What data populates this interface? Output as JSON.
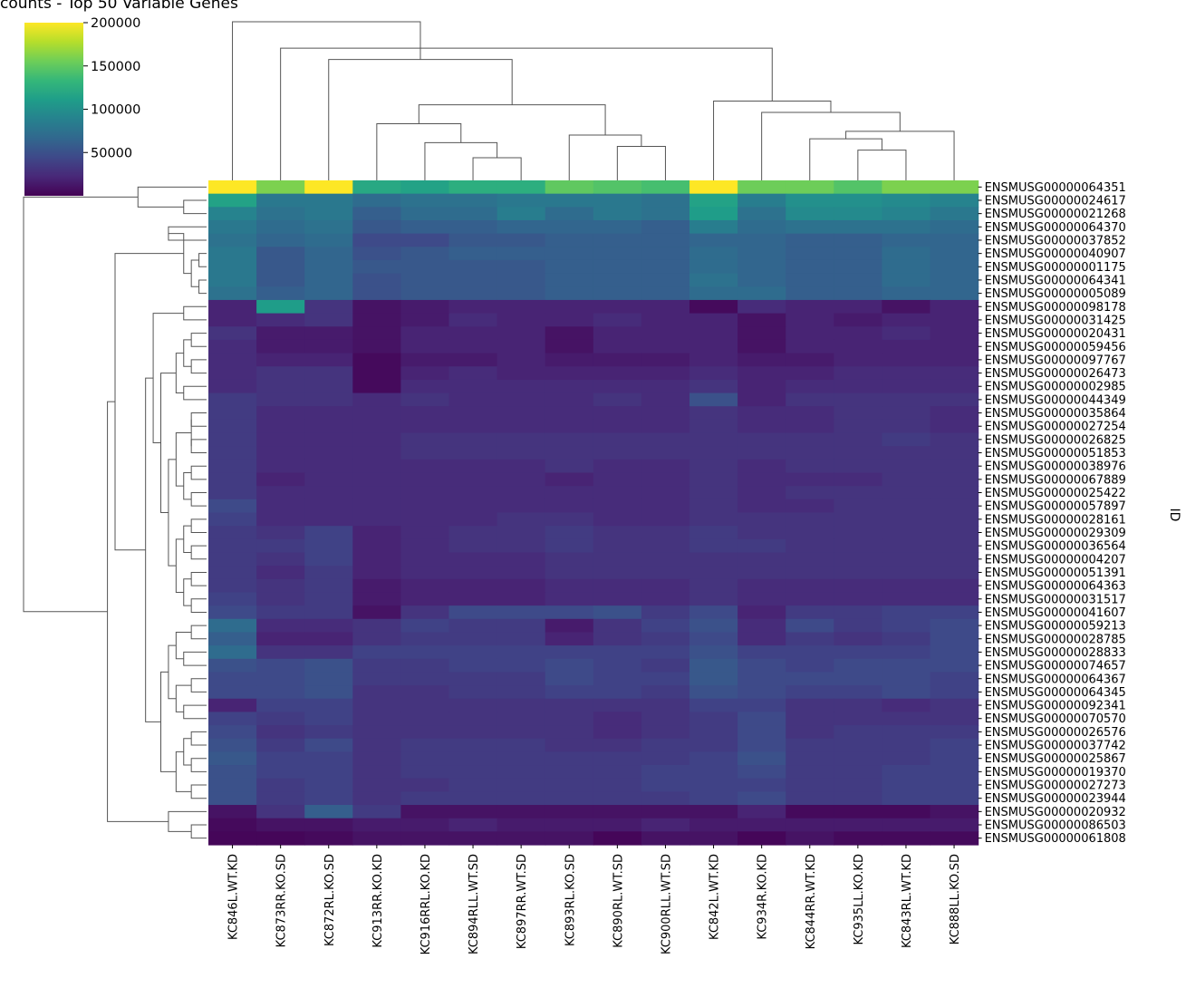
{
  "chart_data": {
    "type": "heatmap",
    "title": "counts - Top 50 Variable Genes",
    "xlabel": "",
    "ylabel": "ID",
    "colormap": "viridis",
    "colorbar": {
      "min": 0,
      "max": 200000,
      "ticks": [
        50000,
        100000,
        150000,
        200000
      ],
      "tick_labels": [
        "50000",
        "100000",
        "150000",
        "200000"
      ]
    },
    "columns": [
      "KC846L.WT.KD",
      "KC873RR.KO.SD",
      "KC872RL.KO.SD",
      "KC913RR.KO.KD",
      "KC916RRL.KO.KD",
      "KC894RLL.WT.SD",
      "KC897RR.WT.SD",
      "KC893RL.KO.SD",
      "KC890RL.WT.SD",
      "KC900RLL.WT.SD",
      "KC842L.WT.KD",
      "KC934R.KO.KD",
      "KC844RR.WT.KD",
      "KC935LL.KO.KD",
      "KC843RL.WT.KD",
      "KC888LL.KO.SD"
    ],
    "rows": [
      "ENSMUSG00000064351",
      "ENSMUSG00000024617",
      "ENSMUSG00000021268",
      "ENSMUSG00000064370",
      "ENSMUSG00000037852",
      "ENSMUSG00000040907",
      "ENSMUSG00000001175",
      "ENSMUSG00000064341",
      "ENSMUSG00000005089",
      "ENSMUSG00000098178",
      "ENSMUSG00000031425",
      "ENSMUSG00000020431",
      "ENSMUSG00000059456",
      "ENSMUSG00000097767",
      "ENSMUSG00000026473",
      "ENSMUSG00000002985",
      "ENSMUSG00000044349",
      "ENSMUSG00000035864",
      "ENSMUSG00000027254",
      "ENSMUSG00000026825",
      "ENSMUSG00000051853",
      "ENSMUSG00000038976",
      "ENSMUSG00000067889",
      "ENSMUSG00000025422",
      "ENSMUSG00000057897",
      "ENSMUSG00000028161",
      "ENSMUSG00000029309",
      "ENSMUSG00000036564",
      "ENSMUSG00000004207",
      "ENSMUSG00000051391",
      "ENSMUSG00000064363",
      "ENSMUSG00000031517",
      "ENSMUSG00000041607",
      "ENSMUSG00000059213",
      "ENSMUSG00000028785",
      "ENSMUSG00000028833",
      "ENSMUSG00000074657",
      "ENSMUSG00000064367",
      "ENSMUSG00000064345",
      "ENSMUSG00000092341",
      "ENSMUSG00000070570",
      "ENSMUSG00000026576",
      "ENSMUSG00000037742",
      "ENSMUSG00000025867",
      "ENSMUSG00000019370",
      "ENSMUSG00000027273",
      "ENSMUSG00000023944",
      "ENSMUSG00000020932",
      "ENSMUSG00000086503",
      "ENSMUSG00000061808"
    ],
    "values": [
      [
        200000,
        160000,
        200000,
        120000,
        115000,
        125000,
        125000,
        150000,
        145000,
        140000,
        200000,
        155000,
        155000,
        145000,
        160000,
        160000
      ],
      [
        115000,
        80000,
        80000,
        70000,
        75000,
        75000,
        80000,
        80000,
        80000,
        75000,
        115000,
        85000,
        100000,
        100000,
        95000,
        90000
      ],
      [
        90000,
        75000,
        80000,
        60000,
        70000,
        70000,
        85000,
        70000,
        80000,
        75000,
        110000,
        75000,
        95000,
        95000,
        90000,
        80000
      ],
      [
        80000,
        70000,
        75000,
        55000,
        60000,
        60000,
        65000,
        65000,
        65000,
        60000,
        85000,
        70000,
        75000,
        75000,
        75000,
        70000
      ],
      [
        75000,
        65000,
        70000,
        45000,
        45000,
        55000,
        55000,
        60000,
        60000,
        60000,
        65000,
        65000,
        60000,
        60000,
        65000,
        65000
      ],
      [
        80000,
        55000,
        65000,
        50000,
        55000,
        60000,
        60000,
        60000,
        60000,
        60000,
        70000,
        65000,
        60000,
        60000,
        70000,
        65000
      ],
      [
        80000,
        55000,
        65000,
        55000,
        55000,
        55000,
        55000,
        60000,
        60000,
        60000,
        70000,
        65000,
        60000,
        60000,
        70000,
        65000
      ],
      [
        80000,
        55000,
        65000,
        50000,
        55000,
        55000,
        55000,
        60000,
        60000,
        60000,
        75000,
        65000,
        60000,
        60000,
        70000,
        65000
      ],
      [
        75000,
        60000,
        65000,
        50000,
        55000,
        55000,
        55000,
        60000,
        60000,
        60000,
        70000,
        70000,
        60000,
        60000,
        65000,
        65000
      ],
      [
        20000,
        110000,
        30000,
        10000,
        15000,
        20000,
        20000,
        20000,
        20000,
        20000,
        5000,
        25000,
        20000,
        20000,
        10000,
        20000
      ],
      [
        20000,
        25000,
        30000,
        10000,
        15000,
        25000,
        20000,
        20000,
        25000,
        20000,
        20000,
        10000,
        20000,
        15000,
        20000,
        20000
      ],
      [
        30000,
        15000,
        15000,
        10000,
        20000,
        20000,
        20000,
        10000,
        20000,
        20000,
        20000,
        10000,
        20000,
        20000,
        25000,
        20000
      ],
      [
        25000,
        15000,
        15000,
        10000,
        20000,
        20000,
        20000,
        10000,
        20000,
        20000,
        20000,
        10000,
        20000,
        20000,
        20000,
        20000
      ],
      [
        25000,
        20000,
        20000,
        5000,
        15000,
        15000,
        20000,
        15000,
        15000,
        15000,
        20000,
        15000,
        15000,
        20000,
        20000,
        20000
      ],
      [
        25000,
        30000,
        30000,
        5000,
        20000,
        25000,
        20000,
        20000,
        20000,
        20000,
        25000,
        20000,
        20000,
        25000,
        25000,
        25000
      ],
      [
        25000,
        30000,
        30000,
        5000,
        25000,
        25000,
        25000,
        25000,
        25000,
        25000,
        30000,
        20000,
        25000,
        25000,
        25000,
        25000
      ],
      [
        35000,
        30000,
        30000,
        25000,
        30000,
        25000,
        25000,
        25000,
        30000,
        25000,
        50000,
        20000,
        30000,
        30000,
        30000,
        30000
      ],
      [
        35000,
        25000,
        25000,
        25000,
        25000,
        25000,
        25000,
        25000,
        25000,
        25000,
        30000,
        25000,
        25000,
        30000,
        30000,
        25000
      ],
      [
        35000,
        25000,
        25000,
        25000,
        25000,
        25000,
        25000,
        25000,
        25000,
        25000,
        30000,
        25000,
        25000,
        30000,
        30000,
        25000
      ],
      [
        35000,
        25000,
        25000,
        25000,
        30000,
        30000,
        30000,
        30000,
        30000,
        30000,
        30000,
        30000,
        30000,
        30000,
        35000,
        30000
      ],
      [
        35000,
        25000,
        25000,
        25000,
        30000,
        30000,
        30000,
        30000,
        30000,
        30000,
        30000,
        30000,
        30000,
        30000,
        30000,
        30000
      ],
      [
        35000,
        25000,
        25000,
        25000,
        25000,
        25000,
        25000,
        30000,
        25000,
        25000,
        30000,
        25000,
        30000,
        30000,
        30000,
        30000
      ],
      [
        35000,
        20000,
        25000,
        25000,
        25000,
        25000,
        25000,
        20000,
        25000,
        25000,
        30000,
        25000,
        25000,
        25000,
        30000,
        30000
      ],
      [
        35000,
        25000,
        25000,
        25000,
        25000,
        25000,
        25000,
        25000,
        25000,
        25000,
        30000,
        25000,
        30000,
        30000,
        30000,
        30000
      ],
      [
        45000,
        25000,
        25000,
        25000,
        25000,
        25000,
        25000,
        25000,
        25000,
        25000,
        30000,
        25000,
        25000,
        30000,
        30000,
        30000
      ],
      [
        40000,
        25000,
        25000,
        25000,
        25000,
        25000,
        30000,
        30000,
        25000,
        25000,
        30000,
        30000,
        30000,
        30000,
        30000,
        30000
      ],
      [
        35000,
        30000,
        40000,
        20000,
        25000,
        30000,
        30000,
        35000,
        30000,
        30000,
        35000,
        30000,
        30000,
        30000,
        30000,
        30000
      ],
      [
        35000,
        35000,
        40000,
        20000,
        25000,
        30000,
        30000,
        35000,
        30000,
        30000,
        35000,
        35000,
        30000,
        30000,
        30000,
        30000
      ],
      [
        35000,
        30000,
        40000,
        20000,
        25000,
        25000,
        25000,
        30000,
        30000,
        30000,
        30000,
        30000,
        30000,
        30000,
        30000,
        30000
      ],
      [
        35000,
        25000,
        35000,
        20000,
        25000,
        25000,
        25000,
        30000,
        30000,
        30000,
        30000,
        30000,
        30000,
        30000,
        30000,
        30000
      ],
      [
        35000,
        30000,
        35000,
        15000,
        20000,
        20000,
        20000,
        25000,
        25000,
        25000,
        30000,
        25000,
        25000,
        25000,
        25000,
        25000
      ],
      [
        40000,
        30000,
        35000,
        15000,
        20000,
        20000,
        20000,
        25000,
        25000,
        25000,
        30000,
        25000,
        25000,
        25000,
        25000,
        25000
      ],
      [
        45000,
        35000,
        35000,
        10000,
        30000,
        45000,
        45000,
        45000,
        50000,
        35000,
        45000,
        20000,
        35000,
        35000,
        40000,
        40000
      ],
      [
        70000,
        25000,
        25000,
        30000,
        40000,
        35000,
        35000,
        15000,
        30000,
        40000,
        50000,
        25000,
        45000,
        35000,
        40000,
        45000
      ],
      [
        60000,
        20000,
        20000,
        30000,
        35000,
        35000,
        35000,
        20000,
        30000,
        35000,
        45000,
        25000,
        35000,
        30000,
        35000,
        45000
      ],
      [
        70000,
        30000,
        30000,
        40000,
        40000,
        40000,
        40000,
        40000,
        40000,
        40000,
        50000,
        40000,
        40000,
        40000,
        40000,
        45000
      ],
      [
        50000,
        45000,
        50000,
        35000,
        35000,
        40000,
        40000,
        45000,
        40000,
        35000,
        55000,
        45000,
        40000,
        45000,
        45000,
        45000
      ],
      [
        45000,
        45000,
        50000,
        35000,
        35000,
        35000,
        35000,
        45000,
        40000,
        40000,
        55000,
        45000,
        45000,
        45000,
        45000,
        40000
      ],
      [
        45000,
        45000,
        50000,
        30000,
        30000,
        35000,
        35000,
        40000,
        40000,
        35000,
        50000,
        45000,
        40000,
        40000,
        45000,
        40000
      ],
      [
        20000,
        40000,
        40000,
        30000,
        30000,
        30000,
        30000,
        30000,
        30000,
        30000,
        40000,
        40000,
        30000,
        30000,
        25000,
        30000
      ],
      [
        40000,
        35000,
        40000,
        30000,
        30000,
        30000,
        30000,
        30000,
        25000,
        30000,
        35000,
        45000,
        30000,
        30000,
        30000,
        30000
      ],
      [
        45000,
        30000,
        35000,
        30000,
        30000,
        30000,
        30000,
        30000,
        25000,
        30000,
        35000,
        45000,
        30000,
        35000,
        35000,
        35000
      ],
      [
        50000,
        35000,
        45000,
        30000,
        35000,
        35000,
        35000,
        30000,
        30000,
        35000,
        35000,
        45000,
        35000,
        35000,
        35000,
        40000
      ],
      [
        55000,
        40000,
        40000,
        30000,
        35000,
        35000,
        35000,
        35000,
        35000,
        35000,
        40000,
        50000,
        35000,
        35000,
        35000,
        40000
      ],
      [
        50000,
        40000,
        40000,
        30000,
        35000,
        35000,
        35000,
        35000,
        35000,
        40000,
        40000,
        45000,
        35000,
        35000,
        40000,
        40000
      ],
      [
        50000,
        35000,
        40000,
        30000,
        30000,
        35000,
        35000,
        35000,
        35000,
        40000,
        40000,
        40000,
        35000,
        35000,
        40000,
        40000
      ],
      [
        50000,
        35000,
        40000,
        30000,
        35000,
        35000,
        35000,
        35000,
        35000,
        35000,
        40000,
        45000,
        35000,
        35000,
        40000,
        40000
      ],
      [
        10000,
        30000,
        60000,
        35000,
        10000,
        10000,
        10000,
        10000,
        10000,
        10000,
        10000,
        20000,
        5000,
        5000,
        5000,
        10000
      ],
      [
        5000,
        10000,
        10000,
        15000,
        15000,
        20000,
        15000,
        15000,
        15000,
        20000,
        15000,
        15000,
        15000,
        15000,
        15000,
        15000
      ],
      [
        3000,
        3000,
        5000,
        10000,
        10000,
        10000,
        10000,
        10000,
        3000,
        10000,
        10000,
        3000,
        10000,
        5000,
        5000,
        5000
      ]
    ],
    "column_dendrogram": [
      [
        5,
        6,
        0.06
      ],
      [
        13,
        14,
        0.08
      ],
      [
        8,
        9,
        0.09
      ],
      [
        4,
        16,
        0.1
      ],
      [
        12,
        17,
        0.11
      ],
      [
        7,
        18,
        0.12
      ],
      [
        15,
        20,
        0.13
      ],
      [
        3,
        19,
        0.15
      ],
      [
        11,
        22,
        0.18
      ],
      [
        23,
        21,
        0.2
      ],
      [
        10,
        24,
        0.21
      ],
      [
        2,
        25,
        0.32
      ],
      [
        1,
        26,
        0.35
      ],
      [
        0,
        27,
        0.42
      ]
    ],
    "row_dendrogram": [
      [
        2,
        1,
        0.03
      ],
      [
        0,
        50,
        0.09
      ],
      [
        49,
        48,
        0.02
      ],
      [
        47,
        52,
        0.05
      ],
      [
        3,
        4,
        0.05
      ],
      [
        5,
        6,
        0.01
      ],
      [
        7,
        8,
        0.01
      ],
      [
        55,
        56,
        0.02
      ],
      [
        54,
        57,
        0.03
      ],
      [
        9,
        10,
        0.03
      ],
      [
        11,
        12,
        0.02
      ],
      [
        13,
        14,
        0.02
      ],
      [
        60,
        61,
        0.03
      ],
      [
        15,
        16,
        0.03
      ],
      [
        62,
        63,
        0.04
      ],
      [
        17,
        18,
        0.02
      ],
      [
        19,
        20,
        0.02
      ],
      [
        65,
        66,
        0.02
      ],
      [
        21,
        22,
        0.02
      ],
      [
        23,
        24,
        0.02
      ],
      [
        68,
        69,
        0.03
      ],
      [
        67,
        70,
        0.04
      ],
      [
        25,
        26,
        0.02
      ],
      [
        27,
        28,
        0.02
      ],
      [
        72,
        73,
        0.03
      ],
      [
        29,
        30,
        0.02
      ],
      [
        31,
        32,
        0.02
      ],
      [
        75,
        76,
        0.03
      ],
      [
        74,
        77,
        0.04
      ],
      [
        71,
        78,
        0.05
      ],
      [
        64,
        79,
        0.06
      ],
      [
        59,
        80,
        0.07
      ],
      [
        33,
        34,
        0.02
      ],
      [
        35,
        36,
        0.03
      ],
      [
        82,
        83,
        0.04
      ],
      [
        37,
        38,
        0.02
      ],
      [
        39,
        40,
        0.03
      ],
      [
        85,
        86,
        0.04
      ],
      [
        84,
        87,
        0.05
      ],
      [
        41,
        42,
        0.02
      ],
      [
        43,
        44,
        0.02
      ],
      [
        89,
        90,
        0.03
      ],
      [
        45,
        46,
        0.02
      ],
      [
        91,
        92,
        0.04
      ],
      [
        88,
        93,
        0.06
      ],
      [
        81,
        94,
        0.08
      ],
      [
        58,
        95,
        0.12
      ],
      [
        53,
        96,
        0.13
      ],
      [
        51,
        97,
        0.24
      ]
    ]
  }
}
